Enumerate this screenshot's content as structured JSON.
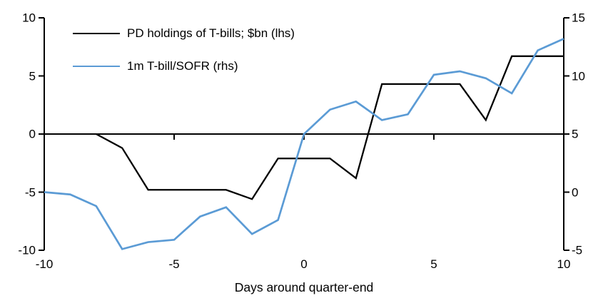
{
  "chart_data": {
    "type": "line",
    "title": "",
    "xlabel": "Days around quarter-end",
    "x_ticks": [
      -10,
      -5,
      0,
      5,
      10
    ],
    "x_range": [
      -10,
      10
    ],
    "left_axis": {
      "side": "lhs",
      "ticks": [
        10,
        5,
        0,
        -5,
        -10
      ],
      "range": [
        -10,
        10
      ]
    },
    "right_axis": {
      "side": "rhs",
      "ticks": [
        15,
        10,
        5,
        0,
        -5
      ],
      "range": [
        -5,
        15
      ]
    },
    "grid": "off",
    "legend_position": "top-left",
    "series": [
      {
        "name": "PD holdings of T-bills; $bn (lhs)",
        "axis": "lhs",
        "color": "#000000",
        "x": [
          -8,
          -7,
          -6,
          -5,
          -4,
          -3,
          -2,
          -1,
          0,
          1,
          2,
          3,
          4,
          5,
          6,
          7,
          8,
          9,
          10
        ],
        "values": [
          0,
          -1.2,
          -4.8,
          -4.8,
          -4.8,
          -4.8,
          -5.6,
          -2.1,
          -2.1,
          -2.1,
          -3.8,
          4.3,
          4.3,
          4.3,
          4.3,
          1.2,
          6.7,
          6.7,
          6.7
        ]
      },
      {
        "name": "1m T-bill/SOFR (rhs)",
        "axis": "rhs",
        "color": "#5B9BD5",
        "x": [
          -10,
          -9,
          -8,
          -7,
          -6,
          -5,
          -4,
          -3,
          -2,
          -1,
          0,
          1,
          2,
          3,
          4,
          5,
          6,
          7,
          8,
          9,
          10
        ],
        "values": [
          0.0,
          -0.2,
          -1.2,
          -4.9,
          -4.3,
          -4.1,
          -2.1,
          -1.3,
          -3.6,
          -2.4,
          5.0,
          7.1,
          7.8,
          6.2,
          6.7,
          10.1,
          10.4,
          9.8,
          8.5,
          12.2,
          13.2
        ]
      }
    ]
  }
}
